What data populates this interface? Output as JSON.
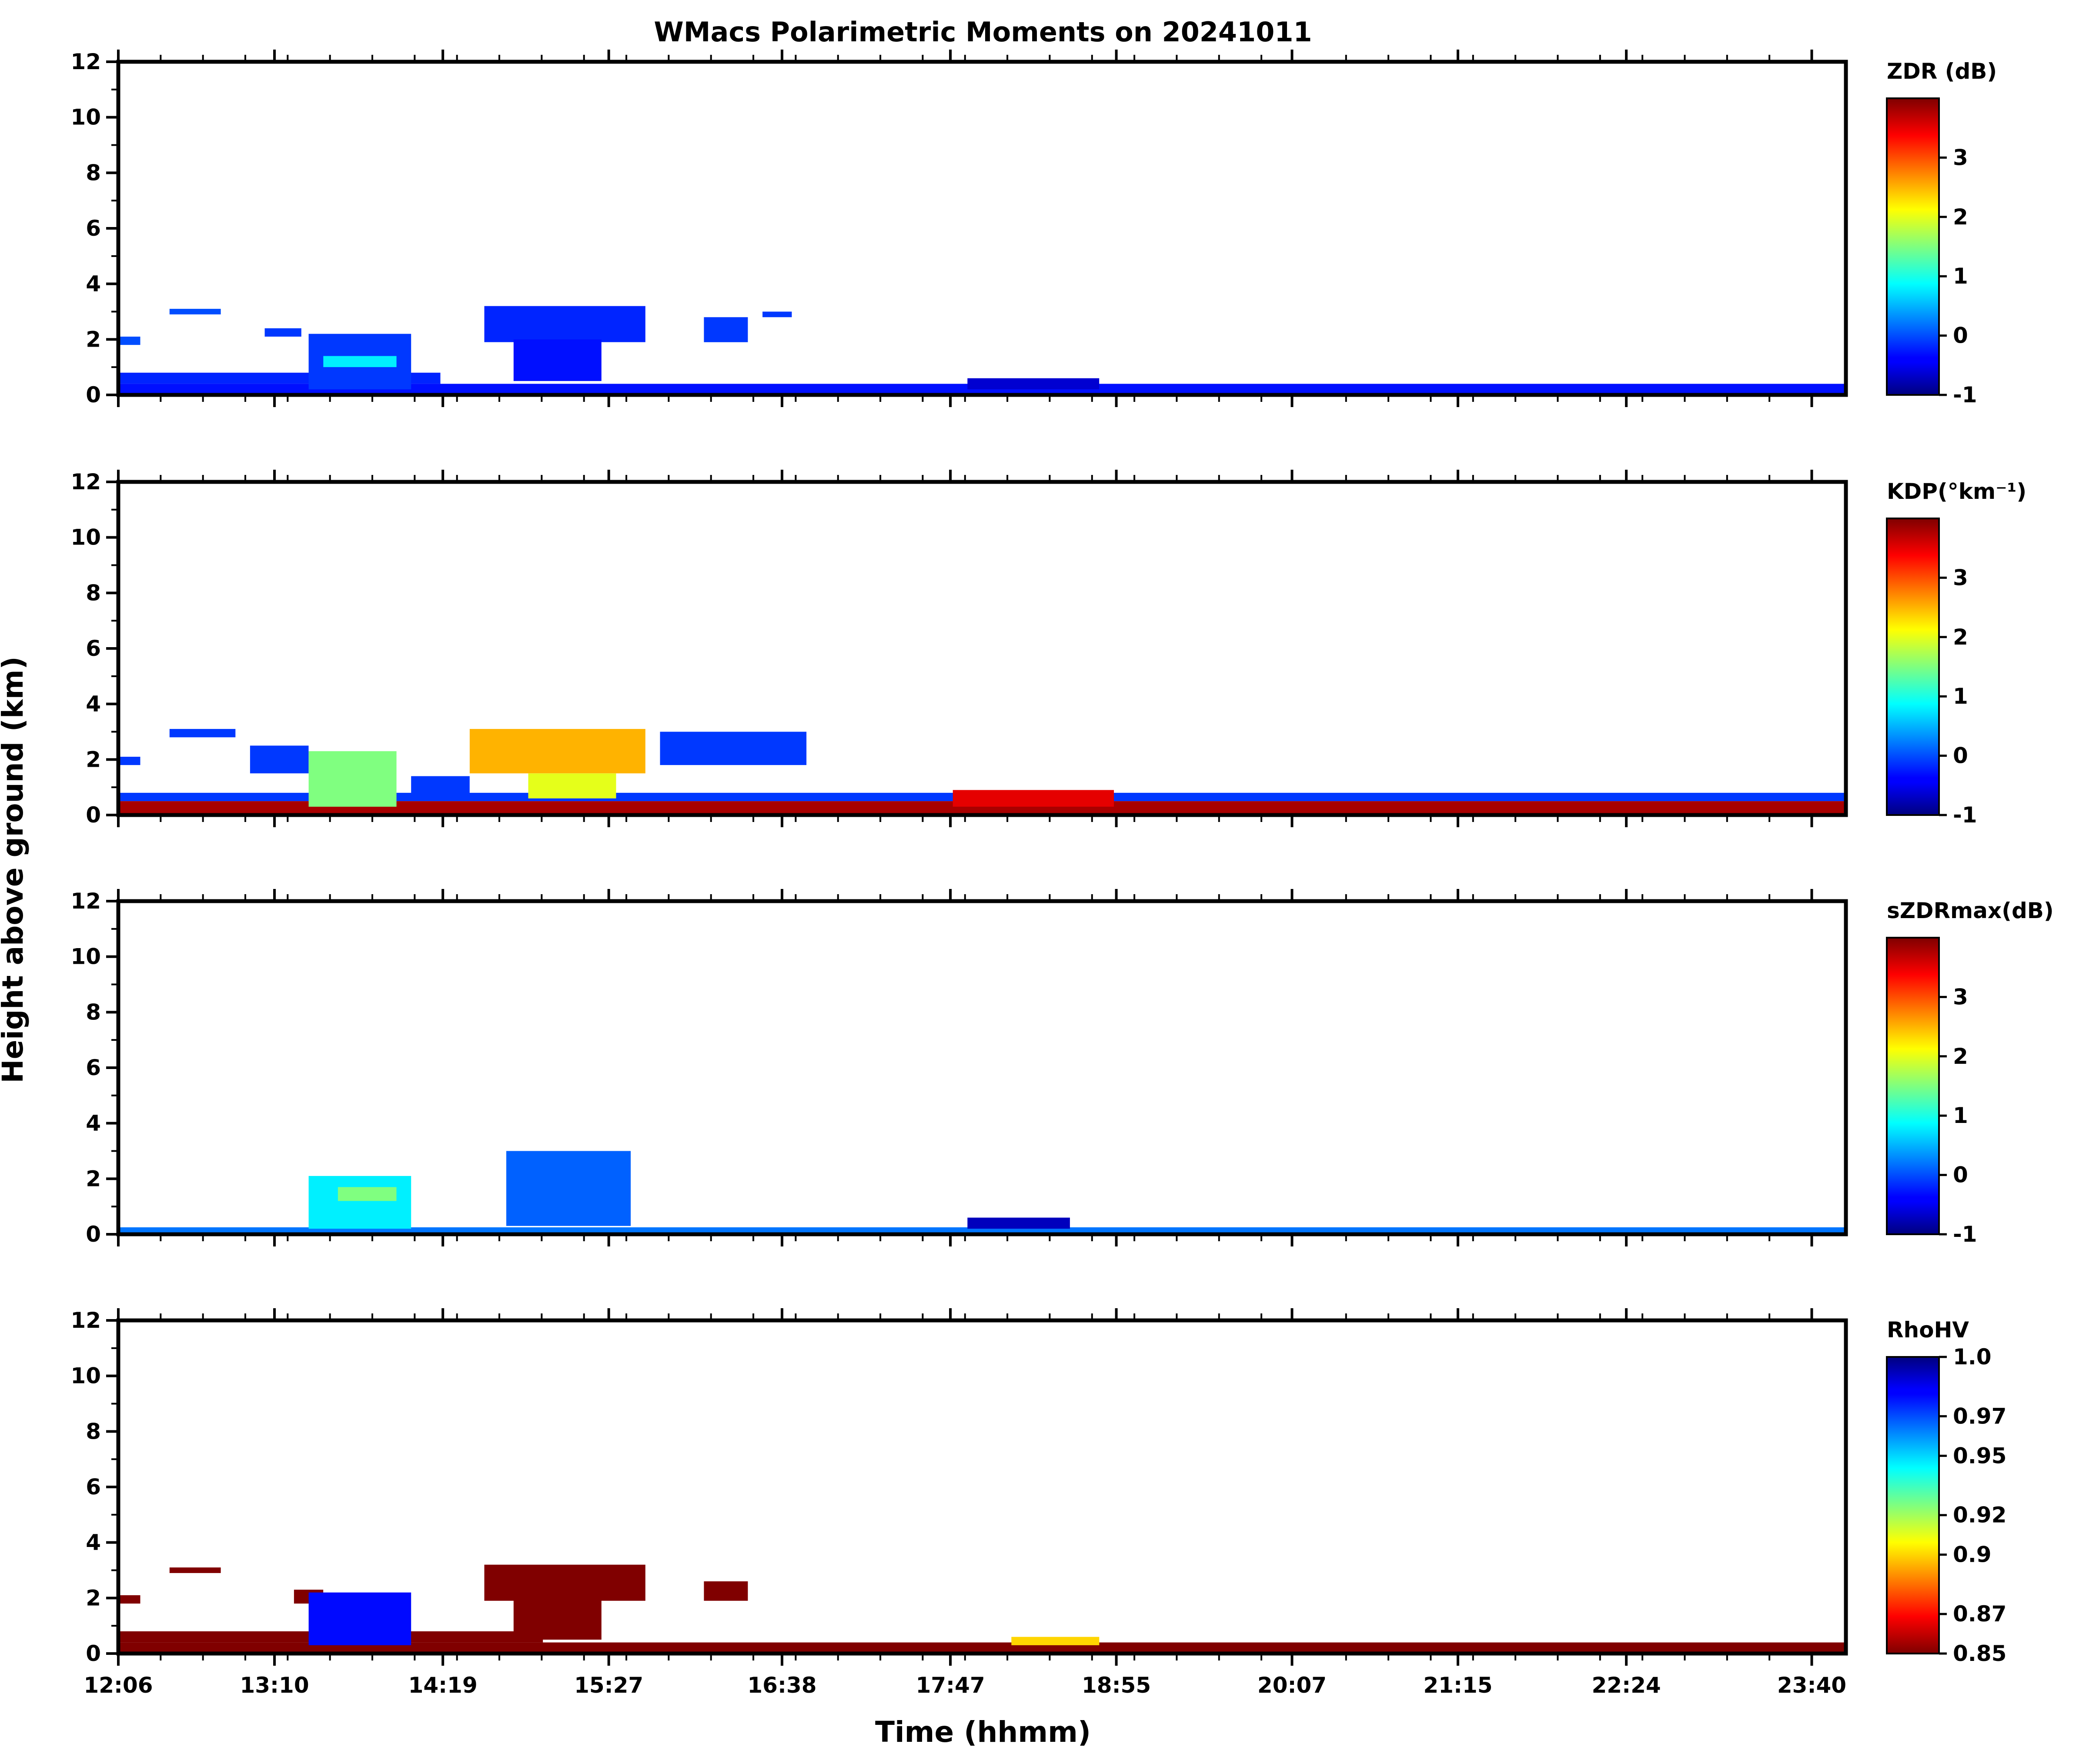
{
  "chart_data": {
    "type": "heatmap",
    "title": "WMacs Polarimetric Moments on 20241011",
    "xlabel": "Time (hhmm)",
    "ylabel": "Height above ground (km)",
    "x_tick_labels": [
      "12:06",
      "13:10",
      "14:19",
      "15:27",
      "16:38",
      "17:47",
      "18:55",
      "20:07",
      "21:15",
      "22:24",
      "23:40"
    ],
    "x_tick_hours": [
      12.1,
      13.1667,
      14.3167,
      15.45,
      16.6333,
      17.7833,
      18.9167,
      20.1167,
      21.25,
      22.4,
      23.6667
    ],
    "xlim_hours": [
      12.1,
      23.9
    ],
    "y_ticks": [
      0,
      2,
      4,
      6,
      8,
      10,
      12
    ],
    "ylim": [
      0,
      12
    ],
    "panels": [
      {
        "colorbar_label": "ZDR (dB)",
        "colorbar_range": [
          -1,
          4
        ],
        "colorbar_ticks": [
          -1,
          0,
          1,
          2,
          3
        ],
        "colormap": "jet",
        "regions": [
          {
            "t0": 12.1,
            "t1": 23.9,
            "h0": 0.0,
            "h1": 0.4,
            "value": -0.3
          },
          {
            "t0": 12.1,
            "t1": 14.3,
            "h0": 0.4,
            "h1": 0.8,
            "value": -0.2
          },
          {
            "t0": 12.1,
            "t1": 12.25,
            "h0": 1.8,
            "h1": 2.1,
            "value": 0.0
          },
          {
            "t0": 12.45,
            "t1": 12.8,
            "h0": 2.9,
            "h1": 3.1,
            "value": 0.0
          },
          {
            "t0": 13.1,
            "t1": 13.35,
            "h0": 2.1,
            "h1": 2.4,
            "value": -0.1
          },
          {
            "t0": 13.4,
            "t1": 14.1,
            "h0": 0.2,
            "h1": 2.2,
            "value": -0.1
          },
          {
            "t0": 13.5,
            "t1": 14.0,
            "h0": 1.0,
            "h1": 1.4,
            "value": 0.8
          },
          {
            "t0": 14.6,
            "t1": 15.7,
            "h0": 1.9,
            "h1": 3.2,
            "value": -0.2
          },
          {
            "t0": 14.8,
            "t1": 15.4,
            "h0": 0.5,
            "h1": 2.0,
            "value": -0.3
          },
          {
            "t0": 16.1,
            "t1": 16.4,
            "h0": 1.9,
            "h1": 2.8,
            "value": -0.1
          },
          {
            "t0": 16.5,
            "t1": 16.7,
            "h0": 2.8,
            "h1": 3.0,
            "value": -0.1
          },
          {
            "t0": 17.9,
            "t1": 18.8,
            "h0": 0.2,
            "h1": 0.6,
            "value": -0.6
          }
        ]
      },
      {
        "colorbar_label": "KDP(°km⁻¹)",
        "colorbar_range": [
          -1,
          4
        ],
        "colorbar_ticks": [
          -1,
          0,
          1,
          2,
          3
        ],
        "colormap": "jet",
        "regions": [
          {
            "t0": 12.1,
            "t1": 23.9,
            "h0": 0.0,
            "h1": 0.5,
            "value": 3.8
          },
          {
            "t0": 12.1,
            "t1": 23.9,
            "h0": 0.5,
            "h1": 0.8,
            "value": -0.1
          },
          {
            "t0": 12.1,
            "t1": 12.25,
            "h0": 1.8,
            "h1": 2.1,
            "value": -0.1
          },
          {
            "t0": 12.45,
            "t1": 12.9,
            "h0": 2.8,
            "h1": 3.1,
            "value": -0.1
          },
          {
            "t0": 13.0,
            "t1": 13.4,
            "h0": 1.5,
            "h1": 2.5,
            "value": -0.1
          },
          {
            "t0": 13.4,
            "t1": 14.0,
            "h0": 0.3,
            "h1": 2.3,
            "value": 1.5
          },
          {
            "t0": 14.1,
            "t1": 14.5,
            "h0": 0.7,
            "h1": 1.4,
            "value": -0.1
          },
          {
            "t0": 14.5,
            "t1": 15.7,
            "h0": 1.5,
            "h1": 3.1,
            "value": 2.5
          },
          {
            "t0": 14.9,
            "t1": 15.5,
            "h0": 0.6,
            "h1": 1.5,
            "value": 2.0
          },
          {
            "t0": 15.8,
            "t1": 16.8,
            "h0": 1.8,
            "h1": 3.0,
            "value": -0.1
          },
          {
            "t0": 17.8,
            "t1": 18.9,
            "h0": 0.3,
            "h1": 0.9,
            "value": 3.5
          }
        ]
      },
      {
        "colorbar_label": "sZDRmax(dB)",
        "colorbar_range": [
          -1,
          4
        ],
        "colorbar_ticks": [
          -1,
          0,
          1,
          2,
          3
        ],
        "colormap": "jet",
        "regions": [
          {
            "t0": 12.1,
            "t1": 23.9,
            "h0": 0.0,
            "h1": 0.25,
            "value": 0.2
          },
          {
            "t0": 13.4,
            "t1": 14.1,
            "h0": 0.2,
            "h1": 2.1,
            "value": 0.8
          },
          {
            "t0": 13.6,
            "t1": 14.0,
            "h0": 1.2,
            "h1": 1.7,
            "value": 1.5
          },
          {
            "t0": 14.75,
            "t1": 15.6,
            "h0": 0.3,
            "h1": 3.0,
            "value": 0.1
          },
          {
            "t0": 17.9,
            "t1": 18.6,
            "h0": 0.2,
            "h1": 0.6,
            "value": -0.7
          }
        ]
      },
      {
        "colorbar_label": "RhoHV",
        "colorbar_range": [
          0.85,
          1.0
        ],
        "colorbar_ticks": [
          0.85,
          0.87,
          0.9,
          0.92,
          0.95,
          0.97,
          1.0
        ],
        "colorbar_tick_labels": [
          "0.85",
          "0.87",
          "0.9",
          "0.92",
          "0.95",
          "0.97",
          "1.0"
        ],
        "colormap": "jet_r",
        "regions": [
          {
            "t0": 12.1,
            "t1": 23.9,
            "h0": 0.0,
            "h1": 0.4,
            "value": 0.85
          },
          {
            "t0": 12.1,
            "t1": 15.0,
            "h0": 0.4,
            "h1": 0.8,
            "value": 0.85
          },
          {
            "t0": 12.1,
            "t1": 12.25,
            "h0": 1.8,
            "h1": 2.1,
            "value": 0.85
          },
          {
            "t0": 12.45,
            "t1": 12.8,
            "h0": 2.9,
            "h1": 3.1,
            "value": 0.85
          },
          {
            "t0": 13.3,
            "t1": 13.5,
            "h0": 1.8,
            "h1": 2.3,
            "value": 0.85
          },
          {
            "t0": 13.4,
            "t1": 14.1,
            "h0": 0.3,
            "h1": 2.2,
            "value": 0.98
          },
          {
            "t0": 14.6,
            "t1": 15.7,
            "h0": 1.9,
            "h1": 3.2,
            "value": 0.85
          },
          {
            "t0": 14.8,
            "t1": 15.4,
            "h0": 0.5,
            "h1": 2.0,
            "value": 0.85
          },
          {
            "t0": 16.1,
            "t1": 16.4,
            "h0": 1.9,
            "h1": 2.6,
            "value": 0.85
          },
          {
            "t0": 18.2,
            "t1": 18.8,
            "h0": 0.3,
            "h1": 0.6,
            "value": 0.9
          }
        ]
      }
    ]
  }
}
